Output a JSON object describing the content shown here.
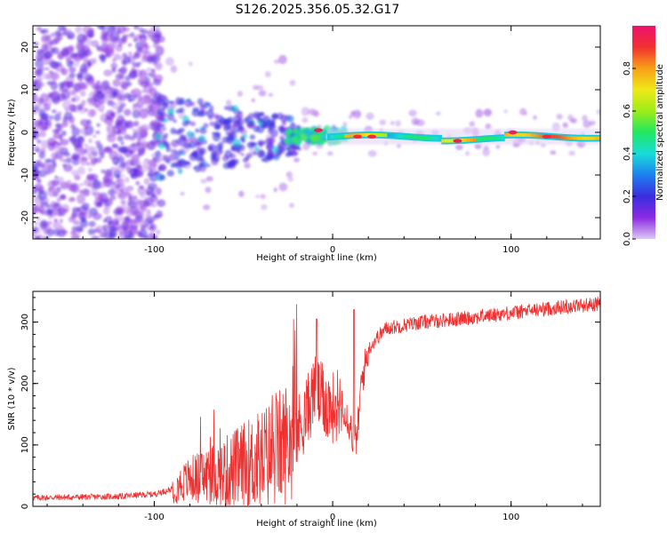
{
  "title": "S126.2025.356.05.32.G17",
  "colors": {
    "line": "#ee3030",
    "frame": "#000000"
  },
  "chart_data": [
    {
      "type": "heatmap",
      "name": "spectrogram",
      "xlabel": "Height of straight line (km)",
      "ylabel": "Frequency (Hz)",
      "xlim": [
        -168,
        150
      ],
      "ylim": [
        -25,
        25
      ],
      "xticks": [
        -100,
        0,
        100
      ],
      "yticks": [
        20,
        10,
        0,
        -10,
        -20
      ],
      "xtick_labels": [
        "-100",
        "0",
        "100"
      ],
      "ytick_labels": [
        "20",
        "10",
        "0",
        "-10",
        "-20"
      ],
      "colorbar": {
        "label": "Normalized spectral amplitude",
        "range": [
          0.0,
          1.0
        ],
        "ticks": [
          0.0,
          0.2,
          0.4,
          0.6,
          0.8
        ],
        "tick_labels": [
          "0.0",
          "0.2",
          "0.4",
          "0.6",
          "0.8"
        ],
        "stops": [
          "#ddc8f4",
          "#8a2be2",
          "#3a2ee0",
          "#1e7ff0",
          "#18dcd8",
          "#20e860",
          "#9cec18",
          "#f0e818",
          "#f8a018",
          "#f23030",
          "#ee1070"
        ]
      },
      "description_features": {
        "noise_region_x": [
          -168,
          -100
        ],
        "signal_line_freq_hz": -1,
        "signal_start_x": -90
      }
    },
    {
      "type": "line",
      "name": "snr",
      "xlabel": "Height of straight line (km)",
      "ylabel": "SNR (10 * v/v)",
      "xlim": [
        -168,
        150
      ],
      "ylim": [
        0,
        350
      ],
      "xticks": [
        -100,
        0,
        100
      ],
      "yticks": [
        0,
        100,
        200,
        300
      ],
      "xtick_labels": [
        "-100",
        "0",
        "100"
      ],
      "ytick_labels": [
        "0",
        "100",
        "200",
        "300"
      ],
      "trend": {
        "x": [
          -168,
          -120,
          -100,
          -90,
          -80,
          -60,
          -40,
          -30,
          -20,
          -15,
          -10,
          -5,
          0,
          5,
          10,
          12,
          14,
          16,
          20,
          25,
          30,
          50,
          70,
          100,
          130,
          150
        ],
        "y": [
          14,
          16,
          20,
          28,
          45,
          55,
          75,
          95,
          120,
          150,
          190,
          170,
          160,
          175,
          130,
          100,
          120,
          200,
          255,
          275,
          290,
          300,
          305,
          315,
          325,
          330
        ]
      }
    }
  ]
}
